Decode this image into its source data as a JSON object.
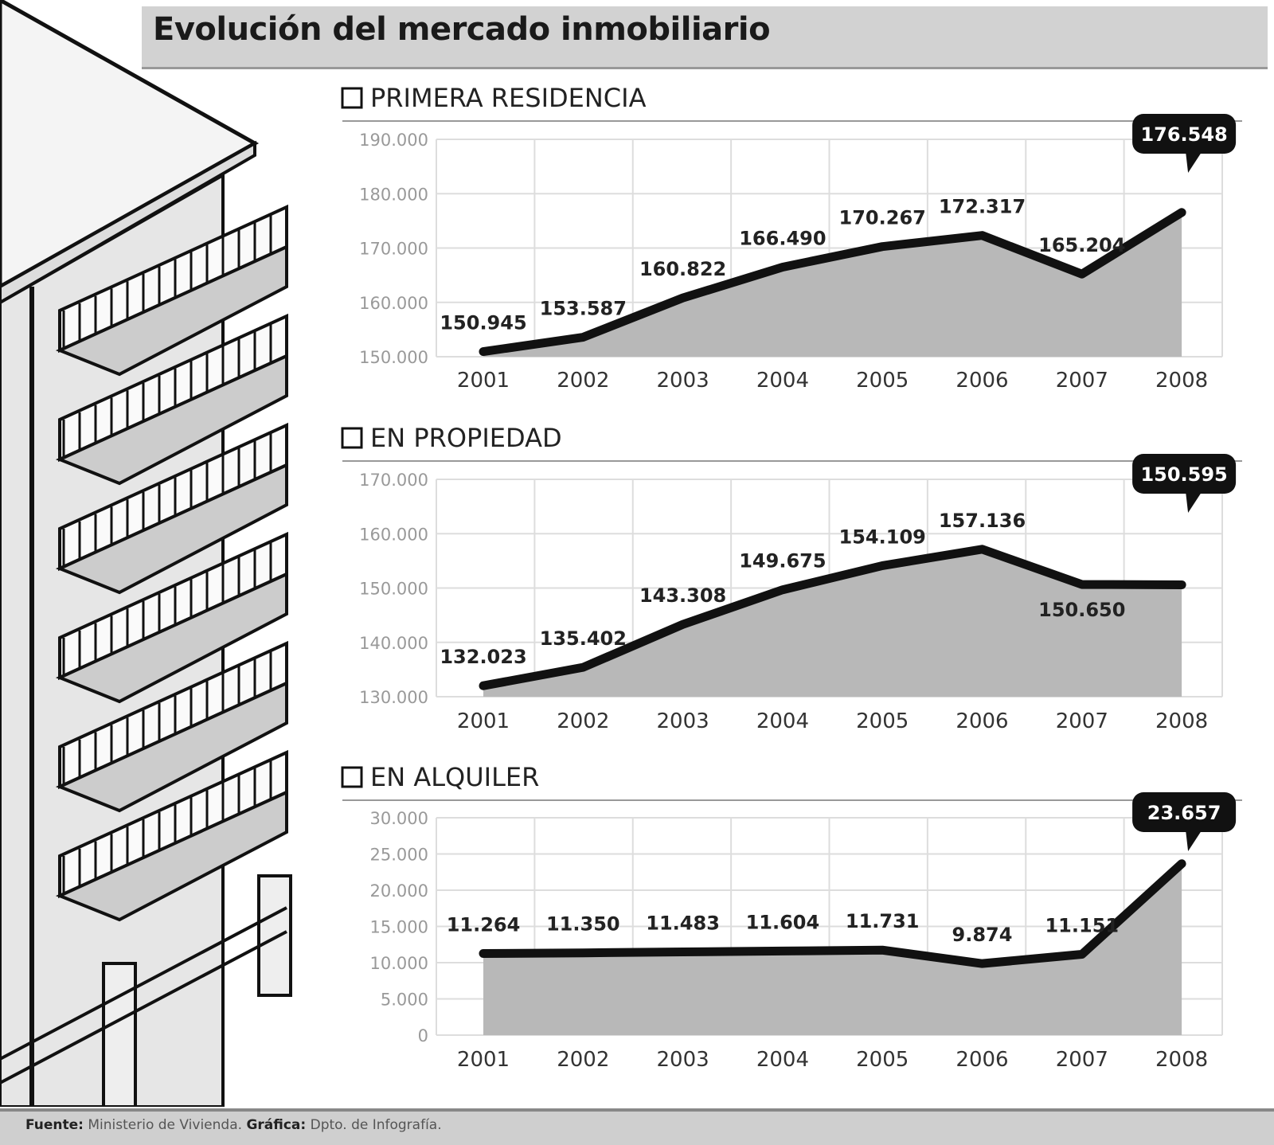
{
  "title": "Evolución del mercado inmobiliario",
  "footer": {
    "source_label": "Fuente:",
    "source": "Ministerio de Vivienda.",
    "graphic_label": "Gráfica:",
    "graphic": "Dpto. de Infografía."
  },
  "colors": {
    "line": "#111111",
    "area": "#b8b8b8",
    "grid": "#dddddd",
    "callout": "#111111"
  },
  "chart_data": [
    {
      "type": "area",
      "title": "PRIMERA RESIDENCIA",
      "categories": [
        "2001",
        "2002",
        "2003",
        "2004",
        "2005",
        "2006",
        "2007",
        "2008"
      ],
      "values": [
        150945,
        153587,
        160822,
        166490,
        170267,
        172317,
        165204,
        176548
      ],
      "value_labels": [
        "150.945",
        "153.587",
        "160.822",
        "166.490",
        "170.267",
        "172.317",
        "165.204",
        "176.548"
      ],
      "ylim": [
        150000,
        190000
      ],
      "yticks": [
        "150.000",
        "160.000",
        "170.000",
        "180.000",
        "190.000"
      ],
      "grid": true,
      "highlight": "2008"
    },
    {
      "type": "area",
      "title": "EN PROPIEDAD",
      "categories": [
        "2001",
        "2002",
        "2003",
        "2004",
        "2005",
        "2006",
        "2007",
        "2008"
      ],
      "values": [
        132023,
        135402,
        143308,
        149675,
        154109,
        157136,
        150650,
        150595
      ],
      "value_labels": [
        "132.023",
        "135.402",
        "143.308",
        "149.675",
        "154.109",
        "157.136",
        "150.650",
        "150.595"
      ],
      "ylim": [
        130000,
        170000
      ],
      "yticks": [
        "130.000",
        "140.000",
        "150.000",
        "160.000",
        "170.000"
      ],
      "grid": true,
      "highlight": "2008"
    },
    {
      "type": "area",
      "title": "EN ALQUILER",
      "categories": [
        "2001",
        "2002",
        "2003",
        "2004",
        "2005",
        "2006",
        "2007",
        "2008"
      ],
      "values": [
        11264,
        11350,
        11483,
        11604,
        11731,
        9874,
        11151,
        23657
      ],
      "value_labels": [
        "11.264",
        "11.350",
        "11.483",
        "11.604",
        "11.731",
        "9.874",
        "11.151",
        "23.657"
      ],
      "ylim": [
        0,
        30000
      ],
      "yticks": [
        "0",
        "5.000",
        "10.000",
        "15.000",
        "20.000",
        "25.000",
        "30.000"
      ],
      "grid": true,
      "highlight": "2008"
    }
  ]
}
